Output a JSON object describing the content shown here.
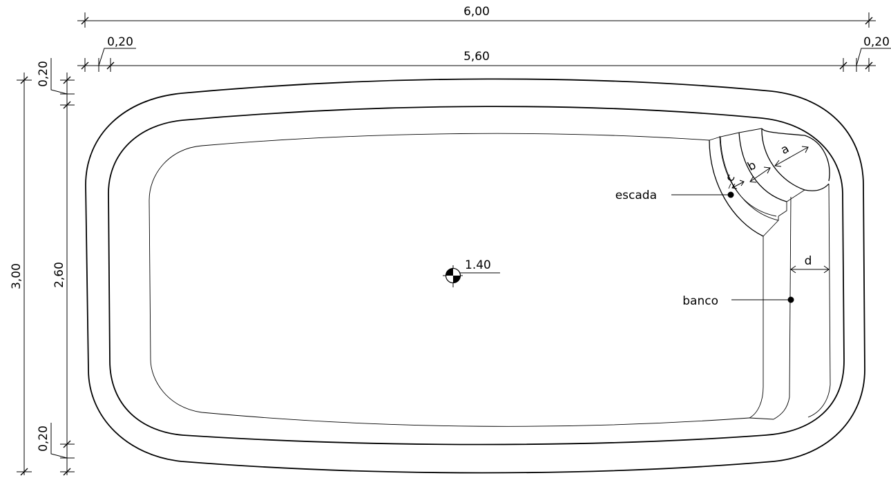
{
  "dimensions": {
    "overall_width": "6,00",
    "inner_width": "5,60",
    "left_rim": "0,20",
    "right_rim": "0,20",
    "overall_height": "3,00",
    "inner_height": "2,60",
    "top_rim": "0,20",
    "bottom_rim": "0,20"
  },
  "depth_marker": {
    "value": "1.40"
  },
  "callouts": {
    "stairs": "escada",
    "bench": "banco"
  },
  "step_labels": {
    "a": "a",
    "b": "b",
    "c": "c",
    "d": "d"
  }
}
